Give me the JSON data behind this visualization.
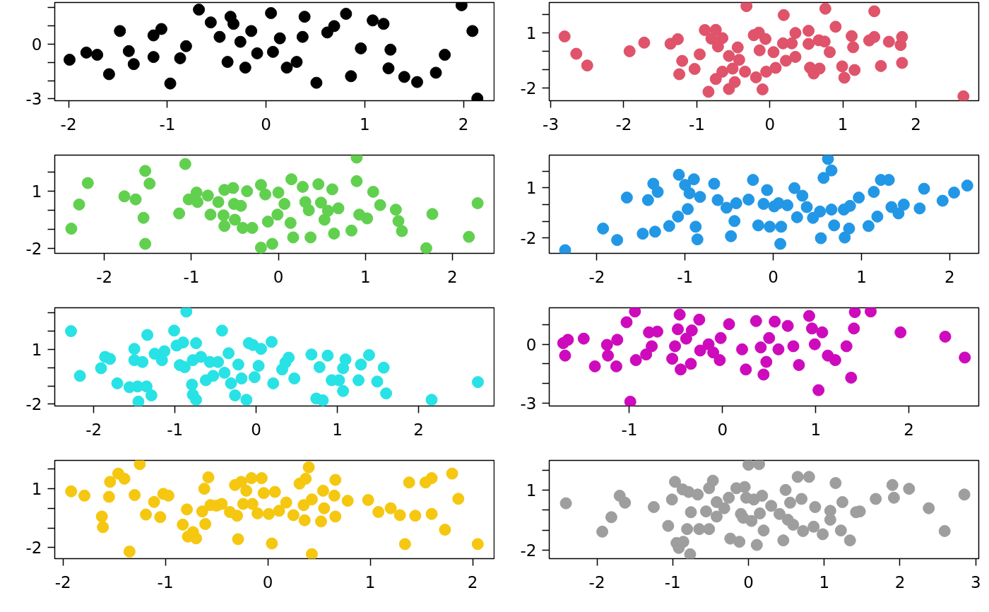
{
  "chart_data": [
    {
      "type": "scatter",
      "marker": "circle",
      "xlim": [
        -2.14,
        2.31
      ],
      "ylim": [
        -3.1,
        2.27
      ],
      "xticks": [
        -2,
        -1,
        0,
        1,
        2
      ],
      "yticks": [
        {
          "value": 2,
          "label": null
        },
        {
          "value": 1,
          "label": null
        },
        0,
        {
          "value": -1,
          "label": null
        },
        {
          "value": -2,
          "label": null
        },
        -3
      ],
      "series": [
        {
          "color": "#000000",
          "x": [
            -1.99,
            -1.82,
            -1.71,
            -1.59,
            -1.48,
            -1.39,
            -1.34,
            -1.14,
            -1.14,
            -1.06,
            -0.97,
            -0.87,
            -0.81,
            -0.68,
            -0.56,
            -0.47,
            -0.39,
            -0.36,
            -0.33,
            -0.26,
            -0.21,
            -0.15,
            -0.09,
            0.05,
            0.07,
            0.14,
            0.21,
            0.31,
            0.37,
            0.39,
            0.51,
            0.62,
            0.69,
            0.81,
            0.86,
            0.96,
            1.08,
            1.19,
            1.26,
            1.24,
            1.4,
            1.53,
            1.72,
            1.81,
            1.98,
            2.09,
            2.14
          ],
          "values": [
            -0.86,
            -0.47,
            -0.59,
            -1.65,
            0.71,
            -0.39,
            -1.1,
            -0.71,
            0.47,
            0.82,
            -2.16,
            -0.78,
            -0.12,
            1.88,
            1.18,
            0.39,
            -0.98,
            1.49,
            1.1,
            0.12,
            -1.29,
            0.71,
            -0.51,
            1.69,
            -0.43,
            0.31,
            -1.29,
            -0.98,
            0.39,
            1.49,
            -2.12,
            0.63,
            0.98,
            1.65,
            -1.76,
            -0.24,
            1.29,
            1.1,
            -0.31,
            -1.33,
            -1.8,
            -2.08,
            -1.57,
            -0.59,
            2.12,
            0.71,
            -2.98
          ]
        }
      ]
    },
    {
      "type": "scatter",
      "marker": "circle",
      "xlim": [
        -3.02,
        2.86
      ],
      "ylim": [
        -2.71,
        2.67
      ],
      "xticks": [
        -3,
        -2,
        -1,
        0,
        1,
        2
      ],
      "yticks": [
        {
          "value": 2,
          "label": null
        },
        1,
        {
          "value": 0,
          "label": null
        },
        {
          "value": -1,
          "label": null
        },
        -2
      ],
      "series": [
        {
          "color": "#df536b",
          "x": [
            -2.81,
            -2.65,
            -2.5,
            -1.92,
            -1.72,
            -1.36,
            -1.26,
            -1.2,
            -1.24,
            -1.03,
            -0.96,
            -0.89,
            -0.84,
            -0.8,
            -0.74,
            -0.74,
            -0.71,
            -0.65,
            -0.65,
            -0.56,
            -0.56,
            -0.51,
            -0.48,
            -0.44,
            -0.42,
            -0.32,
            -0.34,
            -0.22,
            -0.15,
            -0.19,
            -0.14,
            -0.1,
            -0.06,
            -0.05,
            0.05,
            0.08,
            0.19,
            0.18,
            0.22,
            0.3,
            0.35,
            0.35,
            0.53,
            0.53,
            0.55,
            0.6,
            0.67,
            0.68,
            0.75,
            0.76,
            0.82,
            0.9,
            0.99,
            1.02,
            1.12,
            1.14,
            1.16,
            1.36,
            1.43,
            1.43,
            1.52,
            1.63,
            1.79,
            1.81,
            1.81,
            2.65
          ],
          "values": [
            0.81,
            -0.14,
            -0.78,
            0,
            0.47,
            0.41,
            0.66,
            -0.53,
            -1.26,
            -0.97,
            -0.17,
            1.16,
            -2.22,
            0.69,
            1.17,
            -1.52,
            0.26,
            0.72,
            -1.12,
            -0.26,
            -2.07,
            -0.95,
            -1.69,
            0.21,
            -0.47,
            2.47,
            -1.12,
            0.88,
            1.02,
            -1.43,
            0.05,
            -2.09,
            0.67,
            -1.12,
            -0.05,
            -0.91,
            1.98,
            0.43,
            -0.52,
            0.43,
            -0.31,
            1.0,
            1.12,
            0.4,
            -0.9,
            -1.22,
            0.6,
            -0.95,
            0.53,
            2.33,
            -0.05,
            1.34,
            -0.83,
            -1.45,
            0.83,
            0.22,
            -1.03,
            0.59,
            0.78,
            2.19,
            -0.81,
            0.52,
            0.34,
            0.78,
            -0.64,
            -2.47
          ]
        }
      ]
    },
    {
      "type": "scatter",
      "marker": "circle",
      "xlim": [
        -2.57,
        2.48
      ],
      "ylim": [
        -2.27,
        2.9
      ],
      "xticks": [
        -2,
        -1,
        0,
        1,
        2
      ],
      "yticks": [
        {
          "value": 2,
          "label": null
        },
        1,
        {
          "value": 0,
          "label": null
        },
        {
          "value": -1,
          "label": null
        },
        -2
      ],
      "series": [
        {
          "color": "#61d04f",
          "x": [
            -2.38,
            -2.29,
            -2.19,
            -1.77,
            -1.64,
            -1.53,
            -1.48,
            -1.55,
            -1.53,
            -1.14,
            -1.07,
            -1.03,
            -0.94,
            -0.93,
            -0.81,
            -0.78,
            -0.69,
            -0.62,
            -0.63,
            -0.62,
            -0.52,
            -0.51,
            -0.5,
            -0.43,
            -0.41,
            -0.36,
            -0.3,
            -0.2,
            -0.2,
            -0.15,
            -0.12,
            -0.07,
            0.0,
            -0.01,
            0.07,
            0.14,
            0.15,
            0.17,
            0.28,
            0.31,
            0.35,
            0.37,
            0.46,
            0.49,
            0.53,
            0.57,
            0.62,
            0.64,
            0.69,
            0.84,
            0.9,
            0.9,
            0.93,
            1.02,
            1.09,
            1.17,
            1.35,
            1.38,
            1.42,
            1.77,
            1.7,
            2.19,
            2.29
          ],
          "values": [
            -0.97,
            0.3,
            1.43,
            0.73,
            0.57,
            2.07,
            1.4,
            -0.4,
            -1.77,
            -0.17,
            2.43,
            0.57,
            0.93,
            0.43,
            0.77,
            -0.23,
            0.43,
            1.07,
            -0.27,
            -0.83,
            1.17,
            0.33,
            -0.5,
            0.23,
            -0.93,
            1.0,
            -0.93,
            1.33,
            -1.97,
            0.83,
            -0.6,
            -1.77,
            0.93,
            -0.23,
            0.33,
            -0.67,
            1.63,
            -1.43,
            1.23,
            0.43,
            0.0,
            -1.43,
            1.37,
            0.4,
            -0.5,
            -0.03,
            1.1,
            -1.23,
            0.1,
            -1.07,
            2.77,
            1.53,
            -0.23,
            -0.43,
            0.97,
            0.27,
            0.03,
            -0.57,
            -1.1,
            -0.2,
            -2.0,
            -1.4,
            0.37
          ]
        }
      ]
    },
    {
      "type": "scatter",
      "marker": "circle",
      "xlim": [
        -2.54,
        2.33
      ],
      "ylim": [
        -2.93,
        2.97
      ],
      "xticks": [
        -2,
        -1,
        0,
        1,
        2
      ],
      "yticks": [
        {
          "value": 2,
          "label": null
        },
        1,
        {
          "value": 0,
          "label": null
        },
        {
          "value": -1,
          "label": null
        },
        -2
      ],
      "series": [
        {
          "color": "#2297e6",
          "x": [
            -2.36,
            -1.93,
            -1.77,
            -1.66,
            -1.48,
            -1.42,
            -1.36,
            -1.31,
            -1.34,
            -1.18,
            -1.08,
            -1.07,
            -1.0,
            -0.95,
            -0.97,
            -0.9,
            -0.88,
            -0.86,
            -0.83,
            -0.67,
            -0.63,
            -0.53,
            -0.48,
            -0.42,
            -0.44,
            -0.28,
            -0.23,
            -0.17,
            -0.11,
            -0.07,
            -0.04,
            0.01,
            0.06,
            0.09,
            0.08,
            0.16,
            0.24,
            0.27,
            0.33,
            0.38,
            0.45,
            0.53,
            0.54,
            0.57,
            0.62,
            0.66,
            0.66,
            0.69,
            0.8,
            0.81,
            0.87,
            0.86,
            0.97,
            1.08,
            1.14,
            1.18,
            1.22,
            1.31,
            1.34,
            1.42,
            1.48,
            1.66,
            1.71,
            1.92,
            2.05,
            2.2
          ],
          "values": [
            -2.74,
            -1.44,
            -2.13,
            0.42,
            -1.75,
            0.27,
            1.25,
            0.76,
            -1.63,
            -1.29,
            -0.72,
            1.79,
            1.18,
            0.68,
            -0.27,
            1.52,
            -1.33,
            -2.09,
            0.46,
            1.25,
            0.27,
            -0.19,
            -1.9,
            0.08,
            -0.99,
            0.3,
            1.48,
            -1.25,
            0.04,
            0.87,
            -1.33,
            -0.11,
            0.08,
            -1.33,
            -2.36,
            -0.04,
            0.99,
            -0.76,
            0.53,
            -0.15,
            -0.8,
            -0.42,
            -2.02,
            1.6,
            2.74,
            2.05,
            -0.3,
            -1.25,
            -0.3,
            -1.98,
            -0.08,
            -1.44,
            0.42,
            -1.29,
            0.76,
            -0.72,
            1.48,
            1.48,
            -0.15,
            -0.53,
            0.0,
            -0.23,
            0.95,
            0.23,
            0.72,
            1.14
          ]
        }
      ]
    },
    {
      "type": "scatter",
      "marker": "circle",
      "xlim": [
        -2.48,
        2.93
      ],
      "ylim": [
        -2.1,
        3.28
      ],
      "xticks": [
        -2,
        -1,
        0,
        1,
        2
      ],
      "yticks": [
        {
          "value": 3,
          "label": null
        },
        {
          "value": 2,
          "label": null
        },
        1,
        {
          "value": 0,
          "label": null
        },
        {
          "value": -1,
          "label": null
        },
        -2
      ],
      "series": [
        {
          "color": "#28e2e5",
          "x": [
            -2.28,
            -2.17,
            -1.91,
            -1.86,
            -1.8,
            -1.71,
            -1.56,
            -1.5,
            -1.5,
            -1.46,
            -1.45,
            -1.4,
            -1.34,
            -1.35,
            -1.29,
            -1.25,
            -1.13,
            -1.16,
            -0.98,
            -1.01,
            -0.94,
            -0.86,
            -0.9,
            -0.88,
            -0.78,
            -0.79,
            -0.78,
            -0.74,
            -0.74,
            -0.68,
            -0.62,
            -0.57,
            -0.53,
            -0.47,
            -0.42,
            -0.39,
            -0.34,
            -0.31,
            -0.26,
            -0.22,
            -0.18,
            -0.12,
            -0.09,
            -0.04,
            -0.02,
            0.03,
            0.06,
            0.19,
            0.21,
            0.32,
            0.36,
            0.4,
            0.47,
            0.68,
            0.78,
            0.74,
            0.82,
            0.88,
            0.93,
            1.02,
            1.07,
            1.1,
            1.07,
            1.26,
            1.29,
            1.39,
            1.49,
            1.57,
            1.6,
            2.16,
            2.73
          ],
          "values": [
            2.0,
            -0.45,
            -0.03,
            0.59,
            0.48,
            -0.86,
            -1.07,
            1.03,
            0.41,
            -1.03,
            -1.86,
            0.31,
            1.79,
            -1.03,
            -1.52,
            0.76,
            0.9,
            0.41,
            1.21,
            2.03,
            0.14,
            3.07,
            1.38,
            0.03,
            0.41,
            -0.93,
            -1.48,
            1.34,
            -1.76,
            0.59,
            -0.69,
            0.31,
            -0.45,
            0.31,
            2.03,
            -0.28,
            0.79,
            -0.86,
            -1.52,
            0.17,
            -0.59,
            -1.76,
            1.34,
            1.24,
            -0.52,
            0.1,
            1.03,
            1.41,
            -0.86,
            -0.1,
            0.28,
            0.55,
            -0.59,
            0.72,
            0.03,
            -1.69,
            -1.79,
            0.66,
            -0.69,
            -0.69,
            -0.03,
            0.45,
            -1.28,
            -0.69,
            0.17,
            0.69,
            -0.76,
            0.0,
            -1.41,
            -1.76,
            -0.79
          ]
        }
      ]
    },
    {
      "type": "scatter",
      "marker": "circle",
      "xlim": [
        -1.86,
        2.75
      ],
      "ylim": [
        -3.16,
        1.87
      ],
      "xticks": [
        -1,
        0,
        1,
        2
      ],
      "yticks": [
        {
          "value": 1,
          "label": null
        },
        0,
        {
          "value": -1,
          "label": null
        },
        {
          "value": -2,
          "label": null
        },
        -3
      ],
      "series": [
        {
          "color": "#cd0bbc",
          "x": [
            -1.71,
            -1.69,
            -1.66,
            -1.49,
            -1.37,
            -1.24,
            -1.23,
            -1.14,
            -1.13,
            -1.03,
            -0.99,
            -0.94,
            -0.93,
            -0.82,
            -0.79,
            -0.76,
            -0.7,
            -0.54,
            -0.51,
            -0.48,
            -0.46,
            -0.45,
            -0.39,
            -0.33,
            -0.34,
            -0.25,
            -0.24,
            -0.15,
            -0.1,
            -0.03,
            -0.02,
            0.07,
            0.21,
            0.25,
            0.36,
            0.41,
            0.44,
            0.47,
            0.5,
            0.56,
            0.6,
            0.7,
            0.76,
            0.82,
            0.93,
            0.96,
            0.99,
            1.03,
            1.07,
            1.13,
            1.21,
            1.33,
            1.38,
            1.41,
            1.42,
            1.59,
            1.91,
            2.39,
            2.6
          ],
          "values": [
            0.06,
            -0.58,
            0.23,
            0.29,
            -1.13,
            -0.03,
            -0.58,
            -1.13,
            0.23,
            1.13,
            -2.94,
            1.68,
            -0.81,
            -0.52,
            0.61,
            -0.1,
            0.65,
            -0.74,
            -0.1,
            0.77,
            1.52,
            -1.29,
            0.29,
            0.71,
            -1.0,
            1.26,
            -0.32,
            0.0,
            -0.42,
            -0.81,
            0.32,
            1.03,
            -0.26,
            -1.29,
            1.19,
            -0.16,
            -1.55,
            -0.9,
            0.32,
            1.16,
            -0.26,
            0.94,
            -0.1,
            -1.06,
            1.45,
            0.81,
            0.0,
            -2.35,
            0.61,
            -0.58,
            -0.81,
            -0.1,
            -1.71,
            0.81,
            1.65,
            1.68,
            0.61,
            0.39,
            -0.68
          ]
        }
      ]
    },
    {
      "type": "scatter",
      "marker": "circle",
      "xlim": [
        -2.08,
        2.21
      ],
      "ylim": [
        -2.56,
        2.43
      ],
      "xticks": [
        -2,
        -1,
        0,
        1,
        2
      ],
      "yticks": [
        {
          "value": 2,
          "label": null
        },
        1,
        {
          "value": 0,
          "label": null
        },
        {
          "value": -1,
          "label": null
        },
        -2
      ],
      "series": [
        {
          "color": "#f5c710",
          "x": [
            -1.92,
            -1.79,
            -1.62,
            -1.61,
            -1.55,
            -1.54,
            -1.46,
            -1.4,
            -1.35,
            -1.3,
            -1.25,
            -1.19,
            -1.11,
            -1.05,
            -1.02,
            -0.97,
            -0.83,
            -0.79,
            -0.78,
            -0.73,
            -0.7,
            -0.64,
            -0.58,
            -0.61,
            -0.56,
            -0.5,
            -0.45,
            -0.62,
            -0.37,
            -0.32,
            -0.29,
            -0.3,
            -0.26,
            -0.24,
            -0.21,
            -0.16,
            -0.15,
            -0.1,
            -0.06,
            -0.04,
            0.01,
            0.04,
            0.07,
            0.11,
            0.18,
            0.25,
            0.31,
            0.35,
            0.37,
            0.4,
            0.36,
            0.43,
            0.43,
            0.54,
            0.55,
            0.52,
            0.65,
            0.78,
            0.66,
            0.66,
            0.98,
            1.08,
            1.2,
            1.29,
            1.34,
            1.38,
            1.44,
            1.54,
            1.6,
            1.6,
            1.73,
            1.8,
            1.86,
            2.05
          ],
          "values": [
            0.86,
            0.64,
            -0.42,
            -0.96,
            0.58,
            1.34,
            1.76,
            1.5,
            -2.2,
            0.67,
            2.24,
            -0.32,
            0.32,
            -0.45,
            0.73,
            0.64,
            -0.83,
            -0.06,
            -1.44,
            -1.21,
            -1.53,
            -0.16,
            1.57,
            -0.8,
            0.16,
            0.13,
            0.22,
            0.99,
            -0.19,
            1.18,
            -1.57,
            -0.38,
            1.34,
            0.22,
            0.89,
            1.53,
            0.22,
            -0.26,
            1.53,
            0.77,
            -0.29,
            -1.79,
            0.83,
            -0.13,
            0.29,
            -0.35,
            1.25,
            0.16,
            1.5,
            2.08,
            -0.61,
            0.45,
            -2.33,
            0.89,
            0.0,
            -0.67,
            0.64,
            0.38,
            -0.42,
            1.44,
            0.42,
            -0.19,
            0.0,
            -0.35,
            -1.82,
            1.31,
            -0.38,
            1.31,
            1.53,
            -0.29,
            -1.09,
            1.76,
            0.48,
            -1.82
          ]
        }
      ]
    },
    {
      "type": "scatter",
      "marker": "circle",
      "xlim": [
        -2.63,
        3.04
      ],
      "ylim": [
        -2.44,
        2.51
      ],
      "xticks": [
        -2,
        -1,
        0,
        1,
        2,
        3
      ],
      "yticks": [
        {
          "value": 2,
          "label": null
        },
        1,
        {
          "value": 0,
          "label": null
        },
        {
          "value": -1,
          "label": null
        },
        -2
      ],
      "series": [
        {
          "color": "#9e9e9e",
          "x": [
            -2.41,
            -1.93,
            -1.81,
            -1.7,
            -1.63,
            -1.25,
            -1.06,
            -1.01,
            -0.97,
            -0.95,
            -0.92,
            -0.87,
            -0.86,
            -0.79,
            -0.77,
            -0.81,
            -0.76,
            -0.65,
            -0.67,
            -0.56,
            -0.52,
            -0.52,
            -0.47,
            -0.42,
            -0.42,
            -0.32,
            -0.26,
            -0.24,
            -0.16,
            -0.12,
            -0.1,
            -0.05,
            -0.03,
            -0.07,
            0.0,
            0.04,
            0.07,
            0.11,
            0.14,
            0.15,
            0.18,
            0.2,
            0.3,
            0.41,
            0.46,
            0.49,
            0.52,
            0.55,
            0.59,
            0.65,
            0.7,
            0.72,
            0.8,
            0.86,
            0.88,
            0.98,
            1.08,
            1.08,
            1.15,
            1.22,
            1.24,
            1.34,
            1.47,
            1.42,
            1.68,
            1.9,
            1.92,
            2.12,
            2.38,
            2.59,
            2.85
          ],
          "values": [
            0.35,
            -1.08,
            -0.35,
            0.73,
            0.38,
            0.16,
            -0.79,
            0.54,
            1.43,
            -1.65,
            -1.9,
            1.05,
            -1.59,
            0.92,
            -2.22,
            -0.95,
            -0.1,
            -0.95,
            0.79,
            -0.06,
            -0.95,
            1.11,
            1.49,
            0.41,
            -0.32,
            0.1,
            0.63,
            -1.43,
            1.11,
            -1.59,
            -0.19,
            1.17,
            0.63,
            -0.38,
            2.29,
            -0.54,
            0.54,
            -1.75,
            2.32,
            -0.16,
            0.73,
            -1.02,
            0.22,
            -0.19,
            -1.52,
            1.02,
            -0.48,
            0.38,
            -0.73,
            1.68,
            0.57,
            -1.05,
            1.68,
            -0.83,
            0.16,
            -1.21,
            -0.03,
            -0.48,
            1.37,
            -1.02,
            0.41,
            -1.52,
            -0.06,
            -0.1,
            0.57,
            1.27,
            0.63,
            1.08,
            0.1,
            -1.05,
            0.79
          ]
        }
      ]
    }
  ]
}
